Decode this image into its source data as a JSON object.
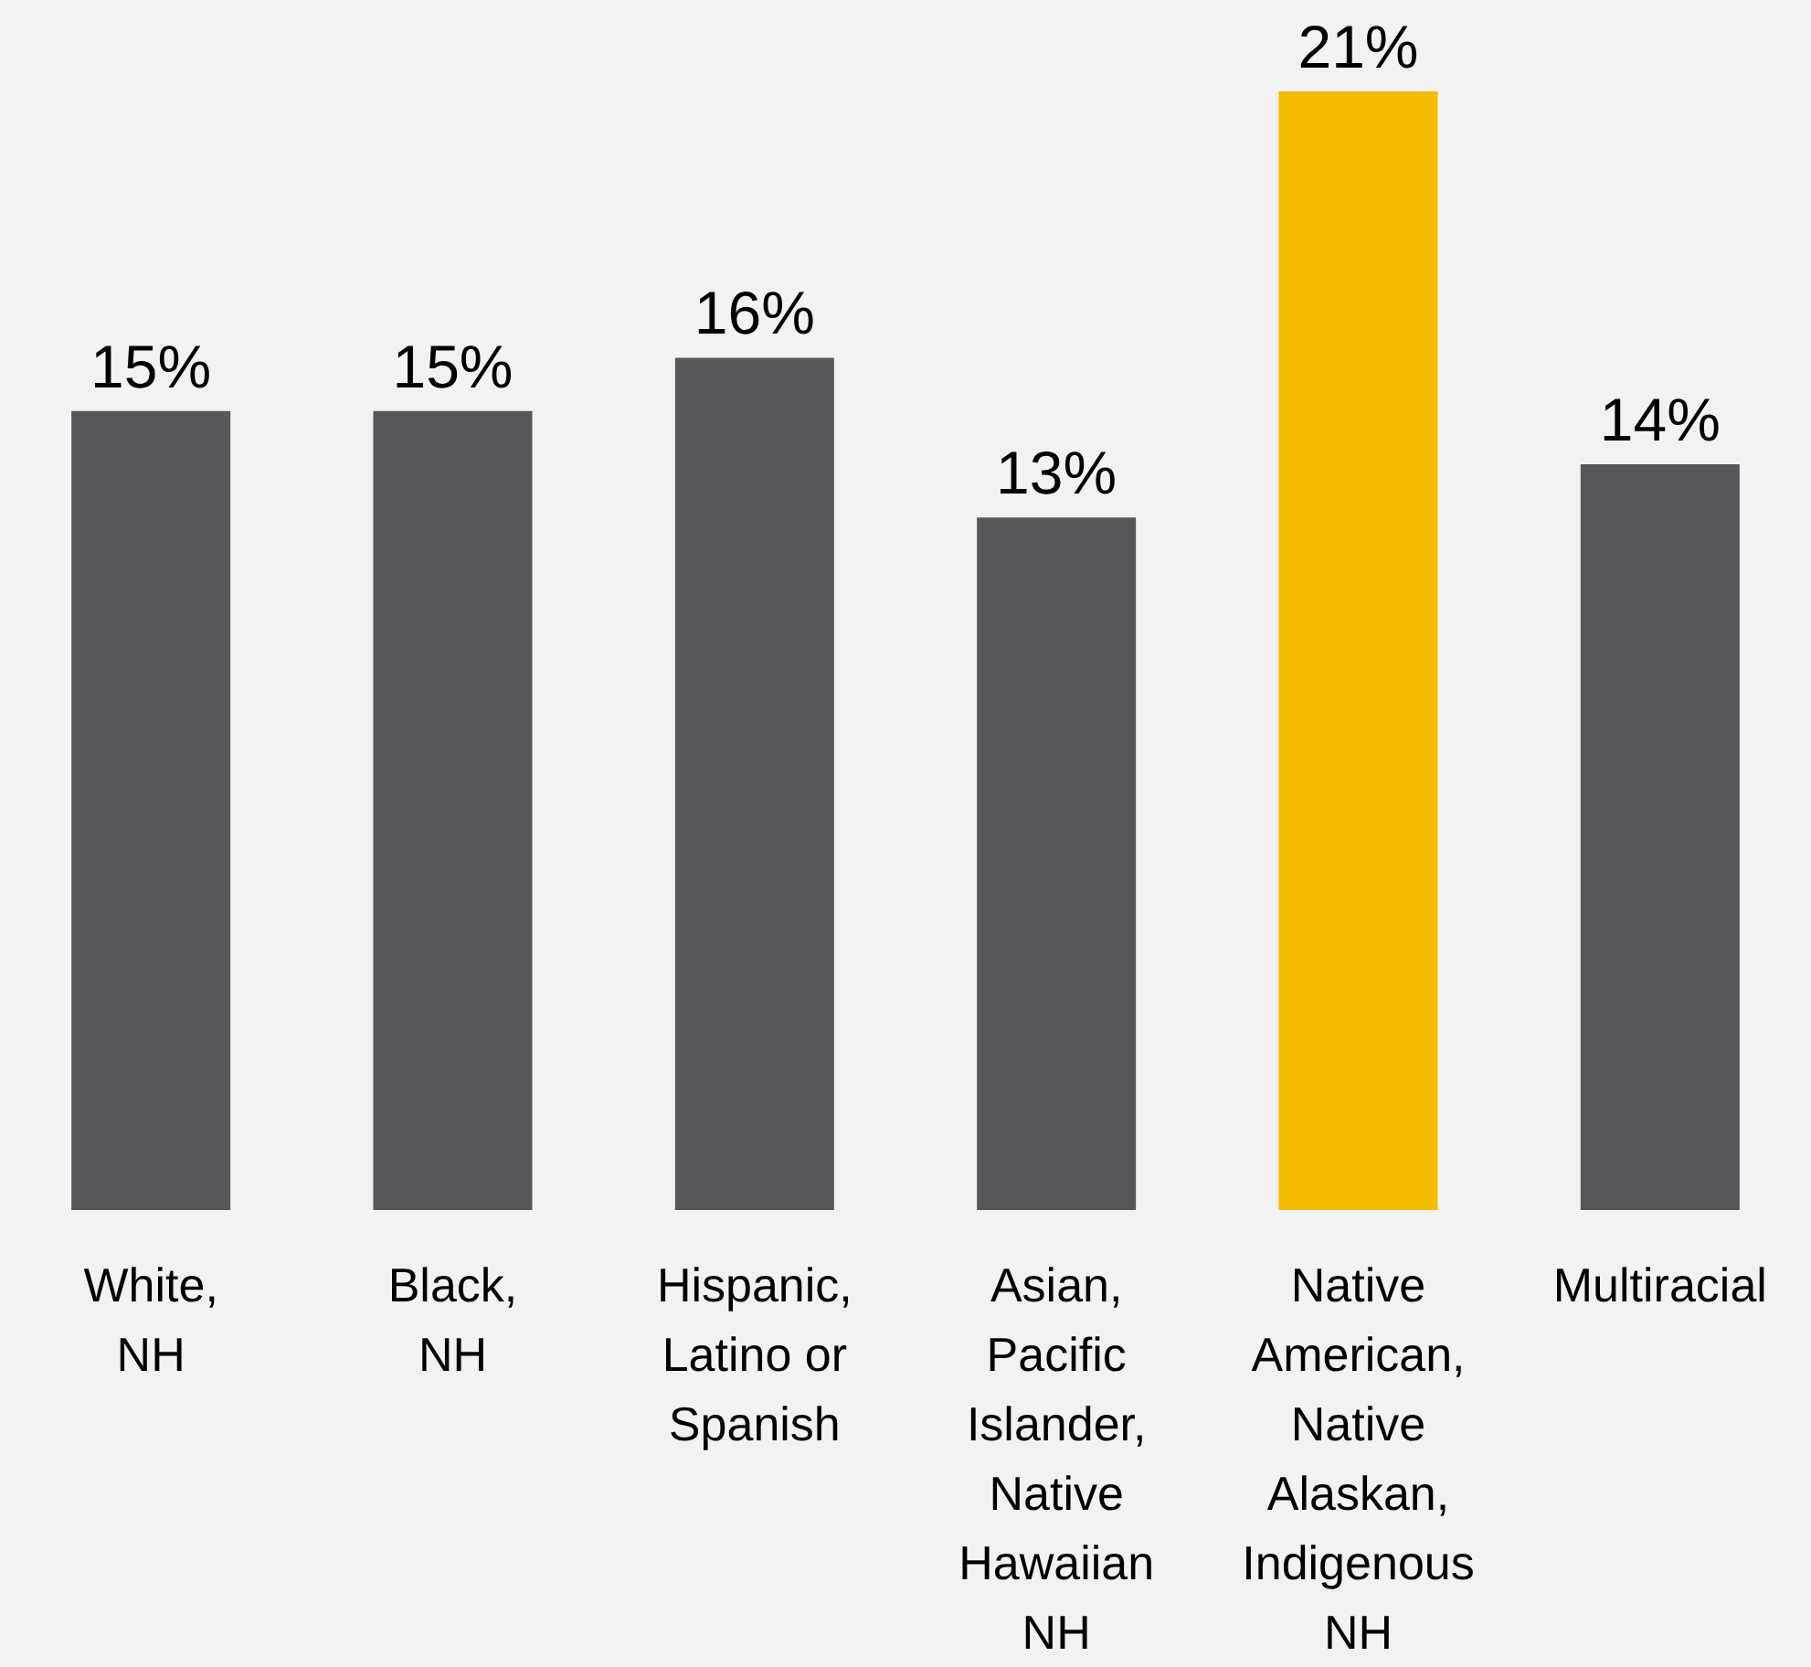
{
  "chart_data": {
    "type": "bar",
    "categories": [
      "White,\nNH",
      "Black,\nNH",
      "Hispanic,\nLatino or\nSpanish",
      "Asian,\nPacific\nIslander,\nNative\nHawaiian\nNH",
      "Native\nAmerican,\nNative\nAlaskan,\nIndigenous\nNH",
      "Multiracial"
    ],
    "values": [
      15,
      15,
      16,
      13,
      21,
      14
    ],
    "value_labels": [
      "15%",
      "15%",
      "16%",
      "13%",
      "21%",
      "14%"
    ],
    "colors": [
      "#56565b",
      "#56565b",
      "#56565b",
      "#56565b",
      "#f5bc00",
      "#56565b"
    ]
  }
}
